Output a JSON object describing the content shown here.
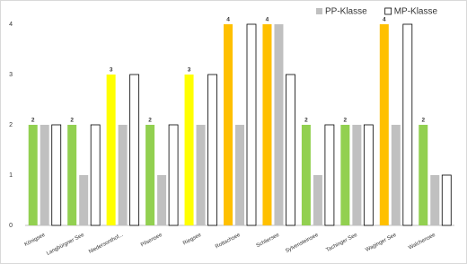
{
  "chart_data": {
    "type": "bar",
    "categories": [
      "Königsee",
      "Langbürgner See",
      "Niedersonthof...",
      "Pilsensee",
      "Riegsee",
      "Rottachsee",
      "Schliersee",
      "Sylvensteinsee",
      "Tachinger See",
      "Waginger See",
      "Walchensee"
    ],
    "series": [
      {
        "values": [
          2,
          2,
          3,
          2,
          3,
          4,
          4,
          2,
          2,
          4,
          2
        ],
        "colors": [
          "#92d050",
          "#92d050",
          "#ffff00",
          "#92d050",
          "#ffff00",
          "#ffc000",
          "#ffc000",
          "#92d050",
          "#92d050",
          "#ffc000",
          "#92d050"
        ],
        "data_labels": true
      },
      {
        "name": "PP-Klasse",
        "color": "#c0c0c0",
        "values": [
          2,
          1,
          2,
          1,
          2,
          2,
          4,
          1,
          2,
          2,
          1
        ]
      },
      {
        "name": "MP-Klasse",
        "color": "#ffffff",
        "values": [
          2,
          2,
          3,
          2,
          3,
          4,
          3,
          2,
          2,
          4,
          1
        ]
      }
    ],
    "ylim": [
      0,
      4
    ],
    "yticks": [
      0,
      1,
      2,
      3,
      4
    ],
    "grid": false,
    "legend": "top-right"
  }
}
